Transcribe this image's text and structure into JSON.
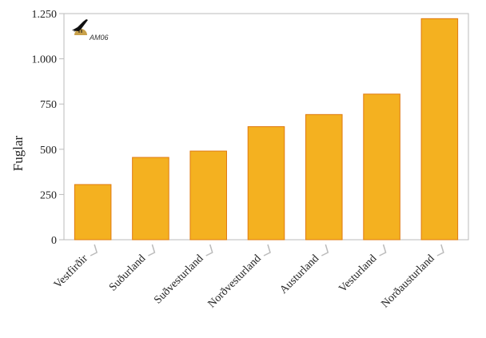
{
  "chart_data": {
    "type": "bar",
    "title": "",
    "xlabel": "",
    "ylabel": "Fuglar",
    "categories": [
      "Vestfirðir",
      "Suðurland",
      "Suðvesturland",
      "Norðvesturland",
      "Austurland",
      "Vesturland",
      "Norðausturland"
    ],
    "values": [
      305,
      455,
      490,
      625,
      692,
      805,
      1222
    ],
    "ylim": [
      0,
      1250
    ],
    "yticks": [
      0,
      250,
      500,
      750,
      1000,
      1250
    ],
    "ytick_labels": [
      "0",
      "250",
      "500",
      "750",
      "1.000",
      "1.250"
    ],
    "grid": false,
    "legend": "none",
    "bar_color": "#f4b120",
    "bar_stroke": "#e07a10",
    "axis_color": "#bbbbbb"
  },
  "logo": {
    "text": "AM06",
    "icon": "raven-icon"
  }
}
